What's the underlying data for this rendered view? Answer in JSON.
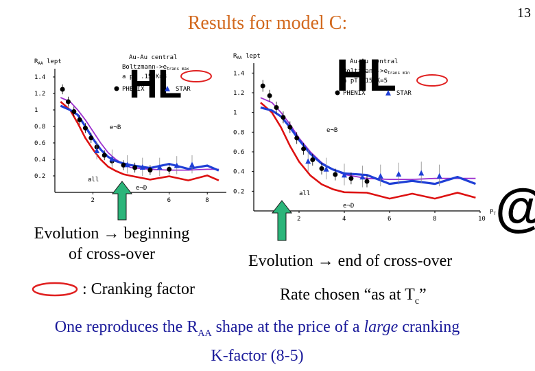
{
  "slide": {
    "number": "13",
    "title": "Results for model C:"
  },
  "annotations": {
    "left_caption_line1": "Evolution → beginning",
    "left_caption_line2": "of cross-over",
    "right_caption": "Evolution → end of cross-over",
    "cranking_legend": ": Cranking factor",
    "rate_text": "Rate chosen “as at T",
    "rate_sub": "c",
    "rate_end": "”",
    "bottom_pre": "One reproduces the R",
    "bottom_sub": "AA",
    "bottom_mid": " shape at the price of a ",
    "bottom_italic": "large",
    "bottom_post": " cranking",
    "bottom_line2": "K-factor (8-5)"
  },
  "colors": {
    "title": "#d2691e",
    "bottom_text": "#1a1a9a",
    "arrow": "#2bb57a",
    "oval": "#e02020",
    "all": "#9c2fcf",
    "eD": "#dd1111",
    "eB": "#1f3fd6",
    "phenix": "#000000",
    "star": "#1f3fd6"
  },
  "chart_data": [
    {
      "type": "line",
      "ylabel": "R",
      "ylabel_sub": "AA",
      "ylabel_suffix": " lept",
      "xlim": [
        0,
        9
      ],
      "ylim": [
        0,
        1.5
      ],
      "yticks": [
        "1.4",
        "1.2",
        "1",
        "0.8",
        "0.6",
        "0.4",
        "0.2"
      ],
      "xticks": [
        "2",
        "6",
        "8"
      ],
      "legend_lines": [
        "Au-Au central",
        "Boltzmann->e",
        "a pT .15  K=8"
      ],
      "legend_sub": "trans max",
      "legend_markers": [
        "PHENIX",
        "STAR"
      ],
      "series": [
        {
          "name": "all",
          "x": [
            0.3,
            0.8,
            1.2,
            1.6,
            2.0,
            2.4,
            2.8,
            3.2,
            3.6,
            4.0,
            5.0,
            6.0,
            7.0,
            8.0,
            8.6
          ],
          "y": [
            1.15,
            1.1,
            1.0,
            0.88,
            0.74,
            0.6,
            0.48,
            0.4,
            0.34,
            0.3,
            0.28,
            0.27,
            0.27,
            0.28,
            0.28
          ]
        },
        {
          "name": "e¬D",
          "x": [
            0.3,
            0.8,
            1.2,
            1.6,
            2.0,
            2.4,
            2.8,
            3.2,
            3.6,
            4.0,
            5.0,
            6.0,
            7.0,
            8.0,
            8.6
          ],
          "y": [
            1.1,
            1.0,
            0.84,
            0.66,
            0.52,
            0.4,
            0.31,
            0.26,
            0.22,
            0.2,
            0.18,
            0.17,
            0.17,
            0.18,
            0.17
          ]
        },
        {
          "name": "e¬B",
          "x": [
            0.3,
            0.8,
            1.2,
            1.6,
            2.0,
            2.4,
            2.8,
            3.2,
            3.6,
            4.0,
            5.0,
            6.0,
            7.0,
            8.0,
            8.6
          ],
          "y": [
            1.05,
            1.0,
            0.94,
            0.8,
            0.65,
            0.52,
            0.43,
            0.38,
            0.35,
            0.33,
            0.32,
            0.32,
            0.31,
            0.3,
            0.29
          ]
        },
        {
          "name": "PHENIX",
          "x": [
            0.4,
            0.7,
            1.0,
            1.3,
            1.6,
            1.9,
            2.2,
            2.6,
            3.0,
            3.6,
            4.2,
            5.0,
            6.0
          ],
          "y": [
            1.25,
            1.1,
            0.98,
            0.88,
            0.78,
            0.66,
            0.55,
            0.45,
            0.38,
            0.33,
            0.3,
            0.27,
            0.28
          ]
        },
        {
          "name": "STAR",
          "x": [
            2.2,
            3.0,
            3.8,
            4.6,
            5.5,
            6.4,
            7.2
          ],
          "y": [
            0.5,
            0.4,
            0.33,
            0.3,
            0.3,
            0.32,
            0.33
          ]
        }
      ]
    },
    {
      "type": "line",
      "ylabel": "R",
      "ylabel_sub": "AA",
      "ylabel_suffix": " lept",
      "xlabel": "P",
      "xlabel_sub": "T",
      "xlim": [
        0,
        10
      ],
      "ylim": [
        0,
        1.5
      ],
      "yticks": [
        "1.4",
        "1.2",
        "1",
        "0.8",
        "0.6",
        "0.4",
        "0.2"
      ],
      "xticks": [
        "2",
        "4",
        "6",
        "8",
        "10"
      ],
      "legend_lines": [
        "Au-Au central",
        "Boltzmann->e",
        "a pT .15  K=5"
      ],
      "legend_sub": "trans min",
      "legend_markers": [
        "PHENIX",
        "STAR"
      ],
      "series": [
        {
          "name": "all",
          "x": [
            0.3,
            0.8,
            1.2,
            1.6,
            2.0,
            2.5,
            3.0,
            3.5,
            4.0,
            5.0,
            6.0,
            7.0,
            8.0,
            9.0,
            9.8
          ],
          "y": [
            1.15,
            1.1,
            1.0,
            0.88,
            0.74,
            0.6,
            0.49,
            0.42,
            0.37,
            0.33,
            0.32,
            0.32,
            0.33,
            0.33,
            0.33
          ]
        },
        {
          "name": "e¬D",
          "x": [
            0.3,
            0.8,
            1.2,
            1.6,
            2.0,
            2.5,
            3.0,
            3.5,
            4.0,
            5.0,
            6.0,
            7.0,
            8.0,
            9.0,
            9.8
          ],
          "y": [
            1.1,
            1.0,
            0.85,
            0.66,
            0.5,
            0.36,
            0.27,
            0.22,
            0.19,
            0.16,
            0.15,
            0.15,
            0.15,
            0.16,
            0.16
          ]
        },
        {
          "name": "e¬B",
          "x": [
            0.3,
            0.8,
            1.2,
            1.6,
            2.0,
            2.5,
            3.0,
            3.5,
            4.0,
            5.0,
            6.0,
            7.0,
            8.0,
            9.0,
            9.8
          ],
          "y": [
            1.05,
            1.02,
            0.96,
            0.85,
            0.72,
            0.58,
            0.48,
            0.42,
            0.38,
            0.34,
            0.3,
            0.28,
            0.3,
            0.32,
            0.3
          ]
        },
        {
          "name": "PHENIX",
          "x": [
            0.4,
            0.7,
            1.0,
            1.3,
            1.6,
            1.9,
            2.2,
            2.6,
            3.0,
            3.6,
            4.3,
            5.0
          ],
          "y": [
            1.27,
            1.17,
            1.05,
            0.95,
            0.85,
            0.74,
            0.63,
            0.52,
            0.43,
            0.37,
            0.33,
            0.3
          ]
        },
        {
          "name": "STAR",
          "x": [
            2.4,
            3.2,
            4.0,
            4.8,
            5.6,
            6.4,
            7.4,
            8.2
          ],
          "y": [
            0.5,
            0.42,
            0.36,
            0.34,
            0.35,
            0.37,
            0.38,
            0.35
          ]
        }
      ]
    }
  ]
}
